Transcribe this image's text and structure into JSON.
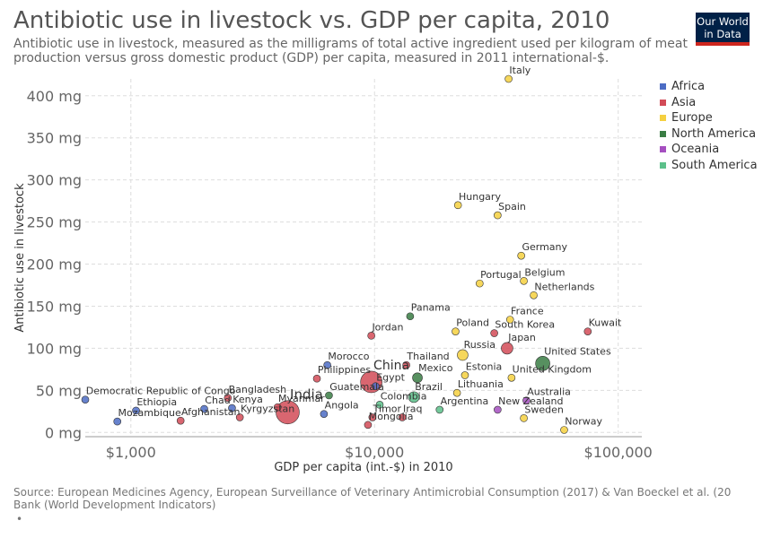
{
  "header": {
    "title": "Antibiotic use in livestock vs. GDP per capita, 2010",
    "subtitle": "Antibiotic use in livestock, measured as the milligrams of total active ingredient used per kilogram of meat production versus gross domestic product (GDP) per capita, measured in 2011 international-$."
  },
  "logo": {
    "line1": "Our World",
    "line2": "in Data"
  },
  "source": {
    "line1": "Source: European Medicines Agency, European Surveillance of Veterinary Antimicrobial Consumption (2017) & Van Boeckel et al. (20",
    "line2": "Bank (World Development Indicators)"
  },
  "footnote": "•",
  "colors": {
    "Africa": "#4c6cc4",
    "Asia": "#d24b57",
    "Europe": "#f5d040",
    "North America": "#3a7d44",
    "Oceania": "#a54fc0",
    "South America": "#5cc08a"
  },
  "chart_data": {
    "type": "scatter",
    "title": "Antibiotic use in livestock vs. GDP per capita, 2010",
    "xlabel": "GDP per capita (int.-$) in 2010",
    "ylabel": "Antibiotic use in livestock",
    "x_scale": "log",
    "xlim": [
      650,
      125000
    ],
    "ylim": [
      -5,
      420
    ],
    "x_ticks": [
      {
        "value": 1000,
        "label": "$1,000"
      },
      {
        "value": 10000,
        "label": "$10,000"
      },
      {
        "value": 100000,
        "label": "$100,000"
      }
    ],
    "y_ticks": [
      {
        "value": 0,
        "label": "0 mg"
      },
      {
        "value": 50,
        "label": "50 mg"
      },
      {
        "value": 100,
        "label": "100 mg"
      },
      {
        "value": 150,
        "label": "150 mg"
      },
      {
        "value": 200,
        "label": "200 mg"
      },
      {
        "value": 250,
        "label": "250 mg"
      },
      {
        "value": 300,
        "label": "300 mg"
      },
      {
        "value": 350,
        "label": "350 mg"
      },
      {
        "value": 400,
        "label": "400 mg"
      }
    ],
    "grid": true,
    "legend": "right",
    "series": [
      {
        "name": "Africa",
        "points": [
          {
            "label": "Democratic Republic of Congo",
            "x": 650,
            "y": 39
          },
          {
            "label": "Ethiopia",
            "x": 1050,
            "y": 26
          },
          {
            "label": "Mozambique",
            "x": 880,
            "y": 13
          },
          {
            "label": "Chad",
            "x": 2000,
            "y": 28
          },
          {
            "label": "Kenya",
            "x": 2600,
            "y": 29
          },
          {
            "label": "Angola",
            "x": 6200,
            "y": 22
          },
          {
            "label": "Morocco",
            "x": 6400,
            "y": 80
          },
          {
            "label": "Egypt",
            "x": 10100,
            "y": 55
          }
        ]
      },
      {
        "name": "Asia",
        "points": [
          {
            "label": "India",
            "x": 4400,
            "y": 24
          },
          {
            "label": "China",
            "x": 9700,
            "y": 60
          },
          {
            "label": "Myanmar",
            "x": 4000,
            "y": 30
          },
          {
            "label": "Bangladesh",
            "x": 2500,
            "y": 41
          },
          {
            "label": "Afghanistan",
            "x": 1600,
            "y": 14
          },
          {
            "label": "Kyrgyzstan",
            "x": 2800,
            "y": 18
          },
          {
            "label": "Philippines",
            "x": 5800,
            "y": 64
          },
          {
            "label": "Thailand",
            "x": 13500,
            "y": 80
          },
          {
            "label": "Jordan",
            "x": 9700,
            "y": 115
          },
          {
            "label": "Mongolia",
            "x": 9400,
            "y": 9
          },
          {
            "label": "Timor",
            "x": 9800,
            "y": 18
          },
          {
            "label": "Iraq",
            "x": 13000,
            "y": 18
          },
          {
            "label": "South Korea",
            "x": 31000,
            "y": 118
          },
          {
            "label": "Japan",
            "x": 35000,
            "y": 100
          },
          {
            "label": "Kuwait",
            "x": 75000,
            "y": 120
          }
        ]
      },
      {
        "name": "Europe",
        "points": [
          {
            "label": "Italy",
            "x": 35500,
            "y": 420
          },
          {
            "label": "Hungary",
            "x": 22000,
            "y": 270
          },
          {
            "label": "Spain",
            "x": 32000,
            "y": 258
          },
          {
            "label": "Germany",
            "x": 40000,
            "y": 210
          },
          {
            "label": "Portugal",
            "x": 27000,
            "y": 177
          },
          {
            "label": "Belgium",
            "x": 41000,
            "y": 180
          },
          {
            "label": "Netherlands",
            "x": 45000,
            "y": 163
          },
          {
            "label": "France",
            "x": 36000,
            "y": 134
          },
          {
            "label": "Poland",
            "x": 21500,
            "y": 120
          },
          {
            "label": "Russia",
            "x": 23000,
            "y": 92
          },
          {
            "label": "Estonia",
            "x": 23500,
            "y": 68
          },
          {
            "label": "United Kingdom",
            "x": 36500,
            "y": 65
          },
          {
            "label": "Lithuania",
            "x": 21800,
            "y": 47
          },
          {
            "label": "Sweden",
            "x": 41000,
            "y": 17
          },
          {
            "label": "Norway",
            "x": 60000,
            "y": 3
          }
        ]
      },
      {
        "name": "North America",
        "points": [
          {
            "label": "Panama",
            "x": 14000,
            "y": 138
          },
          {
            "label": "Mexico",
            "x": 15000,
            "y": 65
          },
          {
            "label": "Guatemala",
            "x": 6500,
            "y": 44
          },
          {
            "label": "United States",
            "x": 49000,
            "y": 82
          }
        ]
      },
      {
        "name": "Oceania",
        "points": [
          {
            "label": "Australia",
            "x": 42000,
            "y": 38
          },
          {
            "label": "New Zealand",
            "x": 32000,
            "y": 27
          }
        ]
      },
      {
        "name": "South America",
        "points": [
          {
            "label": "Brazil",
            "x": 14500,
            "y": 42
          },
          {
            "label": "Colombia",
            "x": 10500,
            "y": 33
          },
          {
            "label": "Argentina",
            "x": 18500,
            "y": 27
          }
        ]
      }
    ]
  }
}
